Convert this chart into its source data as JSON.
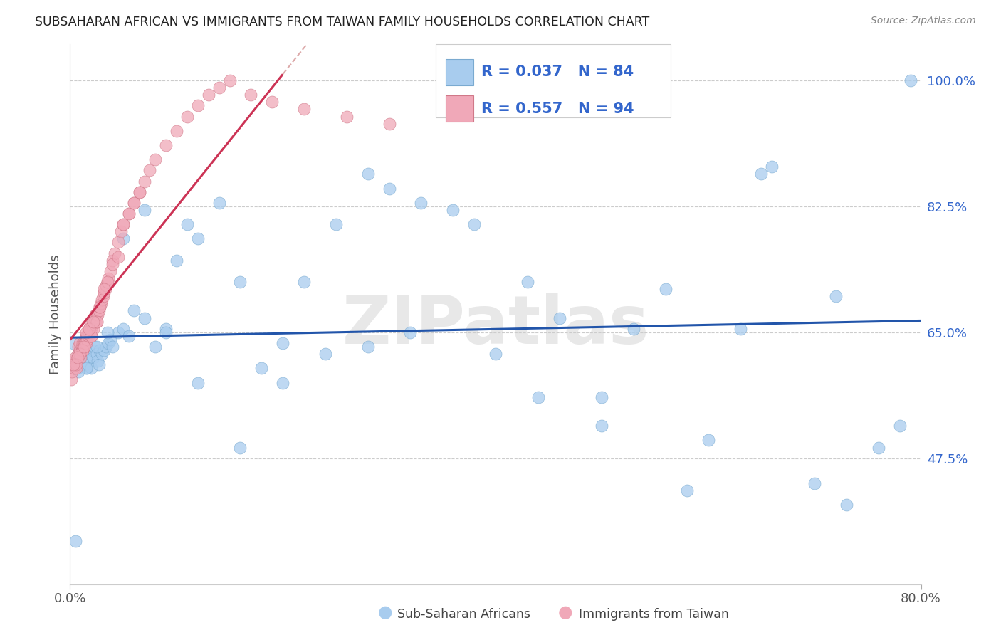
{
  "title": "SUBSAHARAN AFRICAN VS IMMIGRANTS FROM TAIWAN FAMILY HOUSEHOLDS CORRELATION CHART",
  "source": "Source: ZipAtlas.com",
  "ylabel": "Family Households",
  "ytick_labels": [
    "100.0%",
    "82.5%",
    "65.0%",
    "47.5%"
  ],
  "ytick_values": [
    1.0,
    0.825,
    0.65,
    0.475
  ],
  "xtick_labels": [
    "0.0%",
    "80.0%"
  ],
  "xtick_values": [
    0.0,
    0.8
  ],
  "xmin": 0.0,
  "xmax": 0.8,
  "ymin": 0.3,
  "ymax": 1.05,
  "blue_R": 0.037,
  "blue_N": 84,
  "pink_R": 0.557,
  "pink_N": 94,
  "blue_fill": "#a8ccee",
  "blue_edge": "#7aaad0",
  "pink_fill": "#f0a8b8",
  "pink_edge": "#d07888",
  "blue_trend_color": "#2255aa",
  "pink_trend_color": "#cc3355",
  "pink_trend_ext_color": "#ddaaaa",
  "background_color": "#ffffff",
  "grid_color": "#cccccc",
  "title_color": "#222222",
  "watermark": "ZIPatlas",
  "legend_text_color": "#3366cc",
  "right_axis_color": "#3366cc",
  "blue_x": [
    0.003,
    0.006,
    0.007,
    0.008,
    0.009,
    0.01,
    0.011,
    0.012,
    0.013,
    0.014,
    0.015,
    0.016,
    0.017,
    0.018,
    0.019,
    0.02,
    0.021,
    0.022,
    0.023,
    0.025,
    0.026,
    0.027,
    0.028,
    0.03,
    0.032,
    0.034,
    0.036,
    0.038,
    0.04,
    0.045,
    0.05,
    0.055,
    0.06,
    0.07,
    0.08,
    0.09,
    0.1,
    0.11,
    0.12,
    0.14,
    0.16,
    0.18,
    0.2,
    0.22,
    0.25,
    0.28,
    0.3,
    0.33,
    0.36,
    0.4,
    0.43,
    0.46,
    0.5,
    0.53,
    0.56,
    0.6,
    0.63,
    0.66,
    0.7,
    0.73,
    0.76,
    0.78,
    0.79,
    0.72,
    0.65,
    0.58,
    0.5,
    0.44,
    0.38,
    0.32,
    0.28,
    0.24,
    0.2,
    0.16,
    0.12,
    0.09,
    0.07,
    0.05,
    0.035,
    0.025,
    0.015,
    0.01,
    0.008,
    0.005
  ],
  "blue_y": [
    0.635,
    0.61,
    0.6,
    0.62,
    0.625,
    0.615,
    0.61,
    0.62,
    0.615,
    0.605,
    0.61,
    0.6,
    0.625,
    0.615,
    0.62,
    0.6,
    0.625,
    0.615,
    0.63,
    0.62,
    0.61,
    0.605,
    0.625,
    0.62,
    0.625,
    0.63,
    0.635,
    0.64,
    0.63,
    0.65,
    0.655,
    0.645,
    0.68,
    0.67,
    0.63,
    0.655,
    0.75,
    0.8,
    0.78,
    0.83,
    0.72,
    0.6,
    0.635,
    0.72,
    0.8,
    0.87,
    0.85,
    0.83,
    0.82,
    0.62,
    0.72,
    0.67,
    0.52,
    0.655,
    0.71,
    0.5,
    0.655,
    0.88,
    0.44,
    0.41,
    0.49,
    0.52,
    1.0,
    0.7,
    0.87,
    0.43,
    0.56,
    0.56,
    0.8,
    0.65,
    0.63,
    0.62,
    0.58,
    0.49,
    0.58,
    0.65,
    0.82,
    0.78,
    0.65,
    0.63,
    0.6,
    0.62,
    0.595,
    0.36
  ],
  "pink_x": [
    0.001,
    0.002,
    0.003,
    0.004,
    0.005,
    0.006,
    0.007,
    0.008,
    0.008,
    0.009,
    0.009,
    0.01,
    0.01,
    0.011,
    0.011,
    0.012,
    0.012,
    0.013,
    0.013,
    0.014,
    0.014,
    0.015,
    0.015,
    0.016,
    0.016,
    0.017,
    0.017,
    0.018,
    0.018,
    0.019,
    0.02,
    0.02,
    0.021,
    0.022,
    0.022,
    0.023,
    0.024,
    0.025,
    0.025,
    0.026,
    0.027,
    0.028,
    0.029,
    0.03,
    0.031,
    0.032,
    0.033,
    0.034,
    0.035,
    0.036,
    0.038,
    0.04,
    0.042,
    0.045,
    0.048,
    0.05,
    0.055,
    0.06,
    0.065,
    0.07,
    0.075,
    0.08,
    0.09,
    0.1,
    0.11,
    0.12,
    0.13,
    0.14,
    0.15,
    0.17,
    0.19,
    0.22,
    0.26,
    0.3,
    0.035,
    0.04,
    0.045,
    0.025,
    0.02,
    0.015,
    0.012,
    0.009,
    0.006,
    0.003,
    0.028,
    0.032,
    0.018,
    0.022,
    0.007,
    0.013,
    0.05,
    0.055,
    0.06,
    0.065
  ],
  "pink_y": [
    0.585,
    0.595,
    0.61,
    0.6,
    0.615,
    0.6,
    0.615,
    0.63,
    0.62,
    0.625,
    0.635,
    0.625,
    0.615,
    0.63,
    0.625,
    0.625,
    0.635,
    0.635,
    0.63,
    0.64,
    0.635,
    0.645,
    0.635,
    0.645,
    0.64,
    0.65,
    0.645,
    0.655,
    0.65,
    0.66,
    0.655,
    0.645,
    0.66,
    0.665,
    0.655,
    0.67,
    0.675,
    0.675,
    0.665,
    0.675,
    0.68,
    0.685,
    0.69,
    0.695,
    0.7,
    0.705,
    0.71,
    0.715,
    0.72,
    0.725,
    0.735,
    0.75,
    0.76,
    0.775,
    0.79,
    0.8,
    0.815,
    0.83,
    0.845,
    0.86,
    0.875,
    0.89,
    0.91,
    0.93,
    0.95,
    0.965,
    0.98,
    0.99,
    1.0,
    0.98,
    0.97,
    0.96,
    0.95,
    0.94,
    0.72,
    0.745,
    0.755,
    0.665,
    0.645,
    0.65,
    0.625,
    0.62,
    0.605,
    0.605,
    0.685,
    0.71,
    0.655,
    0.665,
    0.615,
    0.63,
    0.8,
    0.815,
    0.83,
    0.845
  ],
  "pink_trend_x0": 0.0,
  "pink_trend_x1": 0.2,
  "pink_trend_ext_x1": 0.38,
  "blue_trend_x0": 0.0,
  "blue_trend_x1": 0.8
}
